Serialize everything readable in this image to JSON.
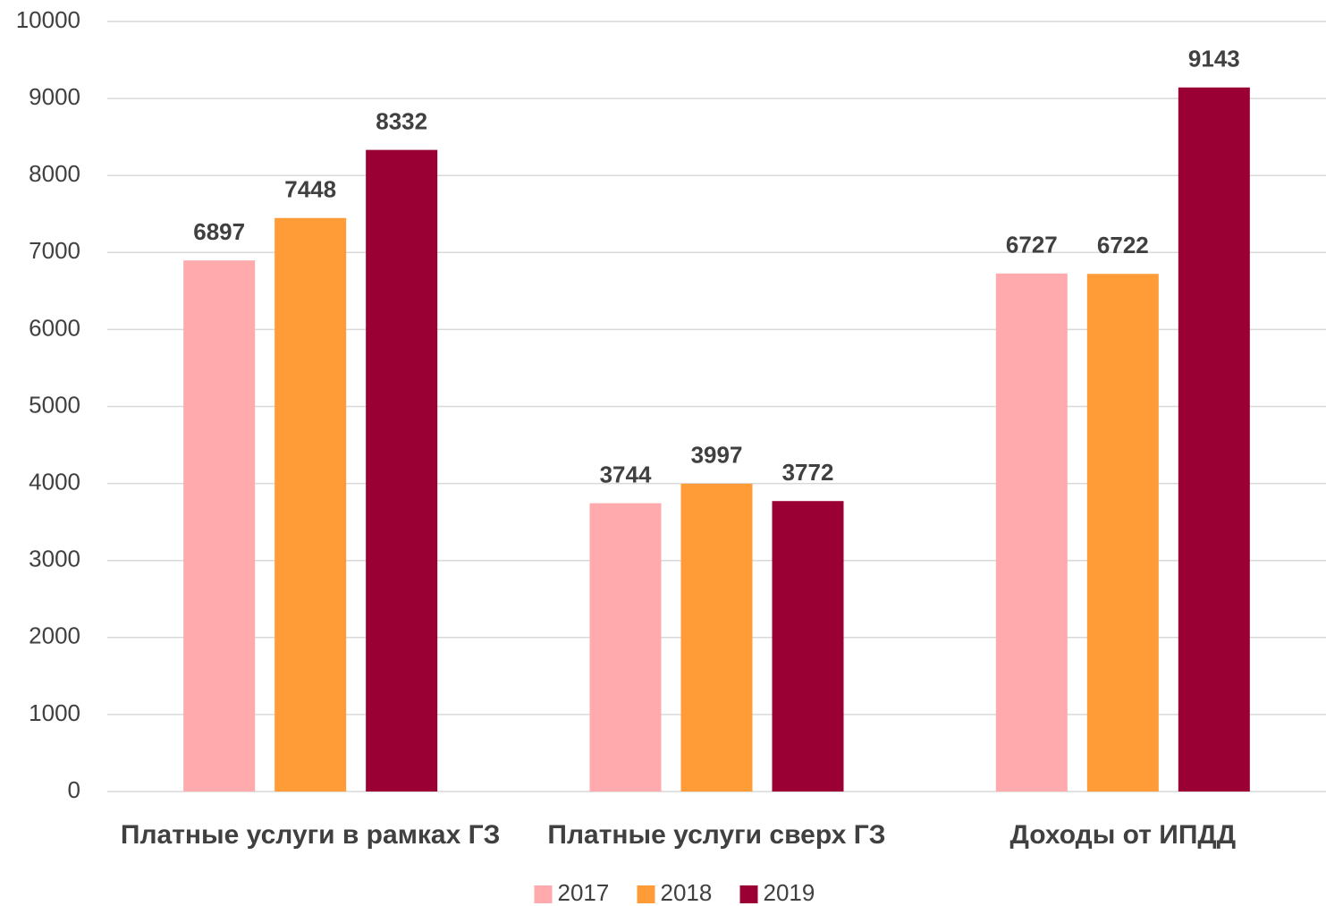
{
  "chart_data": {
    "type": "bar",
    "categories": [
      "Платные услуги в рамках ГЗ",
      "Платные услуги сверх ГЗ",
      "Доходы от ИПДД"
    ],
    "series": [
      {
        "name": "2017",
        "color": "#ffaaad",
        "values": [
          6897,
          3744,
          6727
        ]
      },
      {
        "name": "2018",
        "color": "#ff9c37",
        "values": [
          7448,
          3997,
          6722
        ]
      },
      {
        "name": "2019",
        "color": "#9b0034",
        "values": [
          8332,
          3772,
          9143
        ]
      }
    ],
    "ylim": [
      0,
      10000
    ],
    "yticks": [
      0,
      1000,
      2000,
      3000,
      4000,
      5000,
      6000,
      7000,
      8000,
      9000,
      10000
    ],
    "grid": true,
    "legend": "bottom"
  }
}
